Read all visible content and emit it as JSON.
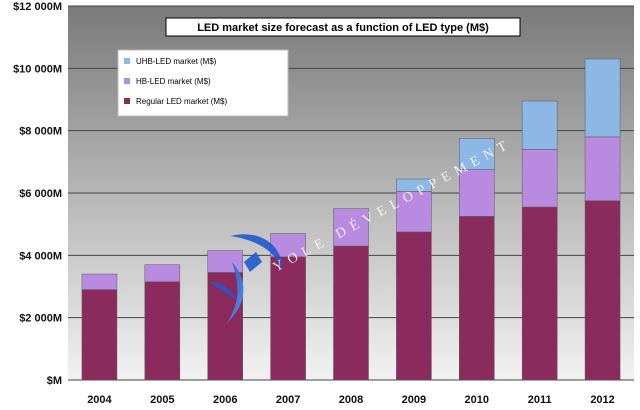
{
  "chart_data": {
    "type": "bar",
    "stacked": true,
    "title": "LED market size forecast as a function of LED type (M$)",
    "categories": [
      "2004",
      "2005",
      "2006",
      "2007",
      "2008",
      "2009",
      "2010",
      "2011",
      "2012"
    ],
    "series": [
      {
        "name": "Regular LED market (M$)",
        "color": "#8b2a5d",
        "values": [
          2900,
          3150,
          3450,
          3950,
          4300,
          4750,
          5250,
          5550,
          5750
        ]
      },
      {
        "name": "HB-LED  market (M$)",
        "color": "#b98be0",
        "values": [
          500,
          550,
          700,
          750,
          1200,
          1300,
          1500,
          1850,
          2050
        ]
      },
      {
        "name": "UHB-LED  market (M$)",
        "color": "#8db8e6",
        "values": [
          0,
          0,
          0,
          0,
          0,
          400,
          1000,
          1550,
          2500
        ]
      }
    ],
    "ylim": [
      0,
      12000
    ],
    "yticks": [
      0,
      2000,
      4000,
      6000,
      8000,
      10000,
      12000
    ],
    "ytick_labels": [
      "$M",
      "$2 000M",
      "$4 000M",
      "$6 000M",
      "$8 000M",
      "$10 000M",
      "$12 000M"
    ],
    "grid": true,
    "legend_position": "top-left",
    "legend_order": [
      "UHB-LED  market (M$)",
      "HB-LED  market (M$)",
      "Regular LED market (M$)"
    ]
  },
  "watermark": {
    "text": "YOLE DÉVELOPPEMENT",
    "logo": "swoosh-logo"
  },
  "colors": {
    "plot_background_top": "#7a7a7a",
    "plot_background_bottom": "#f2f2f2",
    "gridline": "#444444"
  }
}
